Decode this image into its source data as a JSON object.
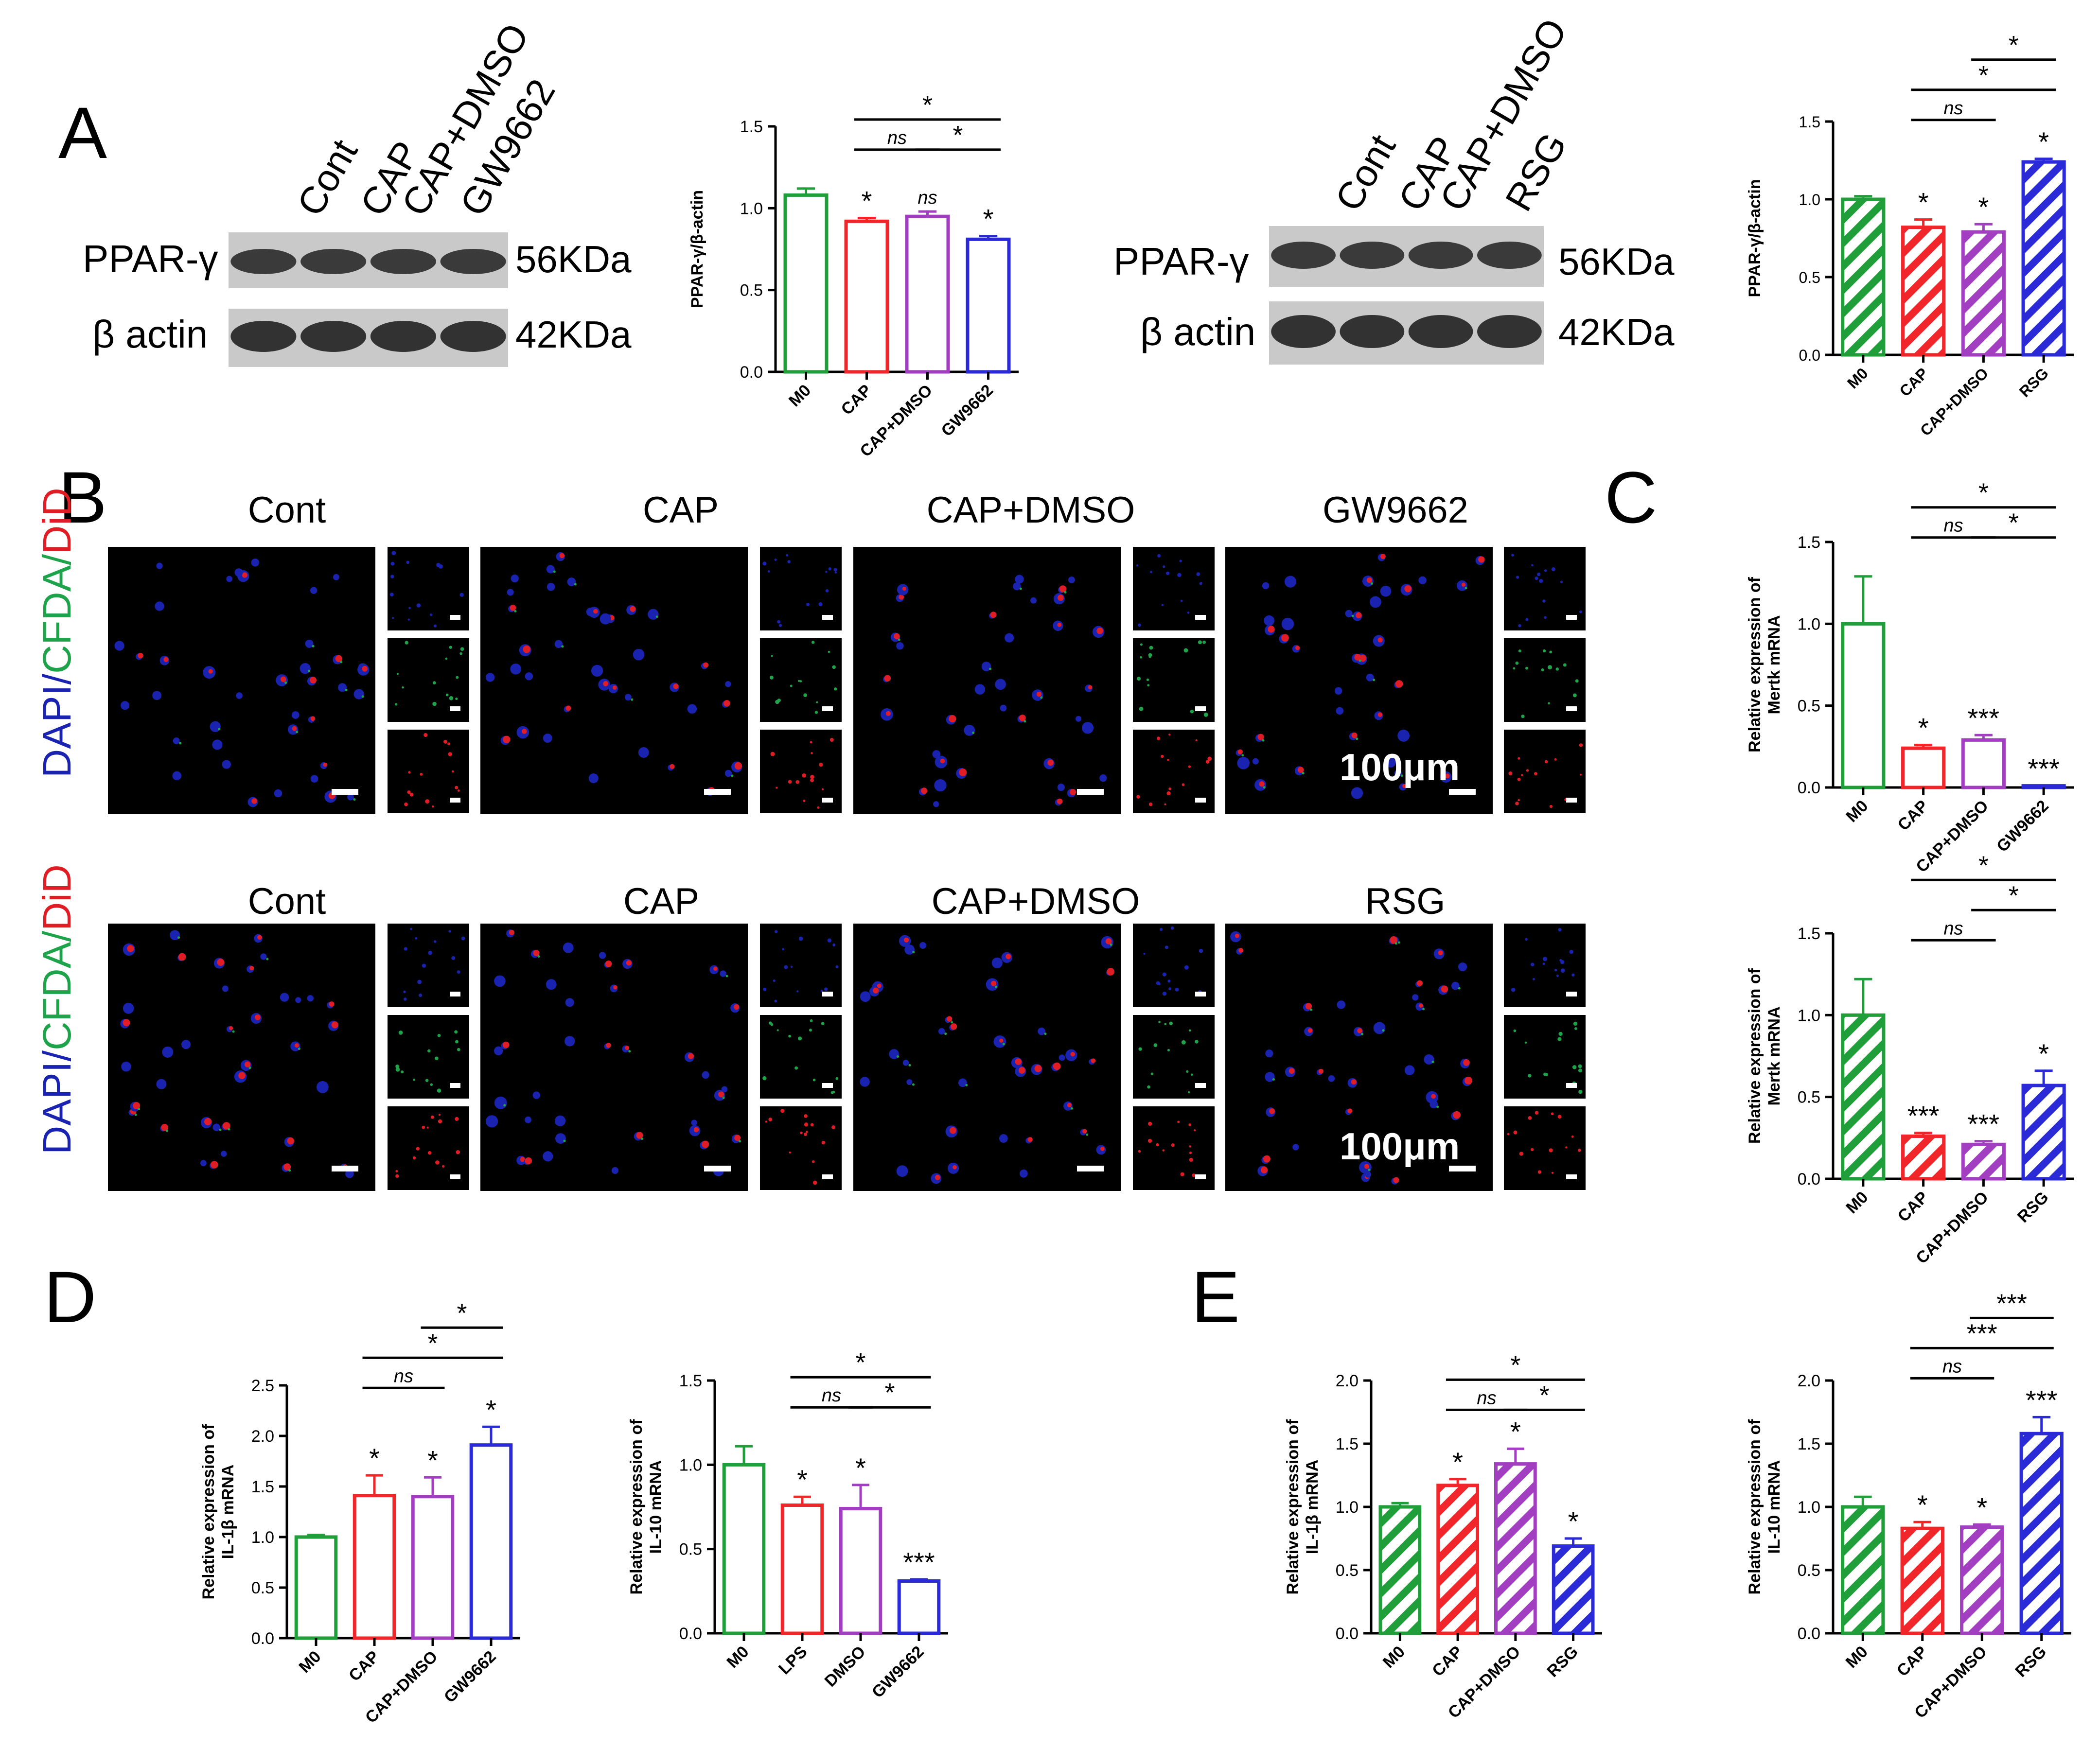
{
  "colors": {
    "green": "#1f9e3a",
    "red": "#f0262b",
    "purple": "#a23ec0",
    "blue": "#2a2ad6",
    "axis": "#000000",
    "dapi": "#1a22b0",
    "cfda": "#1fa34a",
    "did": "#e01c24",
    "blot_bg": "#c9c9c9",
    "blot_band": "#2a2a2a"
  },
  "panel_letters": [
    "A",
    "B",
    "C",
    "D",
    "E"
  ],
  "blots": [
    {
      "lanes": [
        "Cont",
        "CAP",
        "CAP+DMSO",
        "GW9662"
      ],
      "protein1": "PPAR-γ",
      "size1": "56KDa",
      "protein2": "β actin",
      "size2": "42KDa"
    },
    {
      "lanes": [
        "Cont",
        "CAP",
        "CAP+DMSO",
        "RSG"
      ],
      "protein1": "PPAR-γ",
      "size1": "56KDa",
      "protein2": "β actin",
      "size2": "42KDa"
    }
  ],
  "micro": {
    "row1": [
      "Cont",
      "CAP",
      "CAP+DMSO",
      "GW9662"
    ],
    "row2": [
      "Cont",
      "CAP",
      "CAP+DMSO",
      "RSG"
    ],
    "stain": {
      "dapi": "DAPI/",
      "cfda": "CFDA/",
      "did": "DiD"
    },
    "scale": "100μm"
  },
  "chart_data": [
    {
      "id": "A1",
      "type": "bar",
      "ylabel": "PPAR-γ/β-actin",
      "ylim": [
        0,
        1.5
      ],
      "yticks": [
        "0.0",
        "0.5",
        "1.0",
        "1.5"
      ],
      "hatched": false,
      "categories": [
        "M0",
        "CAP",
        "CAP+DMSO",
        "GW9662"
      ],
      "values": [
        1.08,
        0.92,
        0.95,
        0.81
      ],
      "errors": [
        0.04,
        0.02,
        0.03,
        0.02
      ],
      "stars": [
        "",
        "*",
        "ns",
        "*"
      ],
      "brackets": [
        {
          "from": 1,
          "to": 3,
          "label": "*",
          "level": 0
        },
        {
          "from": 1,
          "to": 2,
          "label": "ns",
          "level": 1
        },
        {
          "from": 2,
          "to": 3,
          "label": "*",
          "level": 1
        }
      ]
    },
    {
      "id": "A2",
      "type": "bar",
      "ylabel": "PPAR-γ/β-actin",
      "ylim": [
        0,
        1.5
      ],
      "yticks": [
        "0.0",
        "0.5",
        "1.0",
        "1.5"
      ],
      "hatched": true,
      "categories": [
        "M0",
        "CAP",
        "CAP+DMSO",
        "RSG"
      ],
      "values": [
        1.0,
        0.82,
        0.79,
        1.24
      ],
      "errors": [
        0.02,
        0.05,
        0.05,
        0.02
      ],
      "stars": [
        "",
        "*",
        "*",
        "*"
      ],
      "brackets": [
        {
          "from": 2,
          "to": 3,
          "label": "*",
          "level": 0
        },
        {
          "from": 1,
          "to": 3,
          "label": "*",
          "level": 1
        },
        {
          "from": 1,
          "to": 2,
          "label": "ns",
          "level": 2
        }
      ]
    },
    {
      "id": "C1",
      "type": "bar",
      "ylabel": "Relative expression of Mertk mRNA",
      "ylim": [
        0,
        1.5
      ],
      "yticks": [
        "0.0",
        "0.5",
        "1.0",
        "1.5"
      ],
      "hatched": false,
      "categories": [
        "M0",
        "CAP",
        "CAP+DMSO",
        "GW9662"
      ],
      "values": [
        1.0,
        0.24,
        0.29,
        0.01
      ],
      "errors": [
        0.29,
        0.02,
        0.03,
        0.0
      ],
      "stars": [
        "",
        "*",
        "***",
        "***"
      ],
      "brackets": [
        {
          "from": 1,
          "to": 3,
          "label": "*",
          "level": 0
        },
        {
          "from": 1,
          "to": 2,
          "label": "ns",
          "level": 1
        },
        {
          "from": 2,
          "to": 3,
          "label": "*",
          "level": 1
        }
      ]
    },
    {
      "id": "C2",
      "type": "bar",
      "ylabel": "Relative expression of Mertk mRNA",
      "ylim": [
        0,
        1.5
      ],
      "yticks": [
        "0.0",
        "0.5",
        "1.0",
        "1.5"
      ],
      "hatched": true,
      "categories": [
        "M0",
        "CAP",
        "CAP+DMSO",
        "RSG"
      ],
      "values": [
        1.0,
        0.26,
        0.21,
        0.57
      ],
      "errors": [
        0.22,
        0.02,
        0.02,
        0.09
      ],
      "stars": [
        "",
        "***",
        "***",
        "*"
      ],
      "brackets": [
        {
          "from": 1,
          "to": 3,
          "label": "*",
          "level": 0
        },
        {
          "from": 2,
          "to": 3,
          "label": "*",
          "level": 1
        },
        {
          "from": 1,
          "to": 2,
          "label": "ns",
          "level": 2
        }
      ]
    },
    {
      "id": "D1",
      "type": "bar",
      "ylabel": "Relative expression of IL-1β mRNA",
      "ylim": [
        0,
        2.5
      ],
      "yticks": [
        "0.0",
        "0.5",
        "1.0",
        "1.5",
        "2.0",
        "2.5"
      ],
      "hatched": false,
      "categories": [
        "M0",
        "CAP",
        "CAP+DMSO",
        "GW9662"
      ],
      "values": [
        1.0,
        1.41,
        1.4,
        1.91
      ],
      "errors": [
        0.02,
        0.2,
        0.19,
        0.18
      ],
      "stars": [
        "",
        "*",
        "*",
        "*"
      ],
      "brackets": [
        {
          "from": 2,
          "to": 3,
          "label": "*",
          "level": 0
        },
        {
          "from": 1,
          "to": 3,
          "label": "*",
          "level": 1
        },
        {
          "from": 1,
          "to": 2,
          "label": "ns",
          "level": 2
        }
      ]
    },
    {
      "id": "D2",
      "type": "bar",
      "ylabel": "Relative expression of IL-10 mRNA",
      "ylim": [
        0,
        1.5
      ],
      "yticks": [
        "0.0",
        "0.5",
        "1.0",
        "1.5"
      ],
      "hatched": false,
      "categories": [
        "M0",
        "LPS",
        "DMSO",
        "GW9662"
      ],
      "values": [
        1.0,
        0.76,
        0.74,
        0.31
      ],
      "errors": [
        0.11,
        0.05,
        0.14,
        0.01
      ],
      "stars": [
        "",
        "*",
        "*",
        "***"
      ],
      "brackets": [
        {
          "from": 1,
          "to": 3,
          "label": "*",
          "level": 0
        },
        {
          "from": 1,
          "to": 2,
          "label": "ns",
          "level": 1
        },
        {
          "from": 2,
          "to": 3,
          "label": "*",
          "level": 1
        }
      ]
    },
    {
      "id": "E1",
      "type": "bar",
      "ylabel": "Relative expression of IL-1β mRNA",
      "ylim": [
        0,
        2.0
      ],
      "yticks": [
        "0.0",
        "0.5",
        "1.0",
        "1.5",
        "2.0"
      ],
      "hatched": true,
      "categories": [
        "M0",
        "CAP",
        "CAP+DMSO",
        "RSG"
      ],
      "values": [
        1.0,
        1.17,
        1.34,
        0.69
      ],
      "errors": [
        0.03,
        0.05,
        0.12,
        0.06
      ],
      "stars": [
        "",
        "*",
        "*",
        "*"
      ],
      "brackets": [
        {
          "from": 1,
          "to": 3,
          "label": "*",
          "level": 0
        },
        {
          "from": 1,
          "to": 2,
          "label": "ns",
          "level": 1
        },
        {
          "from": 2,
          "to": 3,
          "label": "*",
          "level": 1
        }
      ]
    },
    {
      "id": "E2",
      "type": "bar",
      "ylabel": "Relative expression of IL-10 mRNA",
      "ylim": [
        0,
        2.0
      ],
      "yticks": [
        "0.0",
        "0.5",
        "1.0",
        "1.5",
        "2.0"
      ],
      "hatched": true,
      "categories": [
        "M0",
        "CAP",
        "CAP+DMSO",
        "RSG"
      ],
      "values": [
        1.0,
        0.83,
        0.84,
        1.58
      ],
      "errors": [
        0.08,
        0.05,
        0.02,
        0.13
      ],
      "stars": [
        "",
        "*",
        "*",
        "***"
      ],
      "brackets": [
        {
          "from": 2,
          "to": 3,
          "label": "***",
          "level": 0
        },
        {
          "from": 1,
          "to": 3,
          "label": "***",
          "level": 1
        },
        {
          "from": 1,
          "to": 2,
          "label": "ns",
          "level": 2
        }
      ]
    }
  ]
}
